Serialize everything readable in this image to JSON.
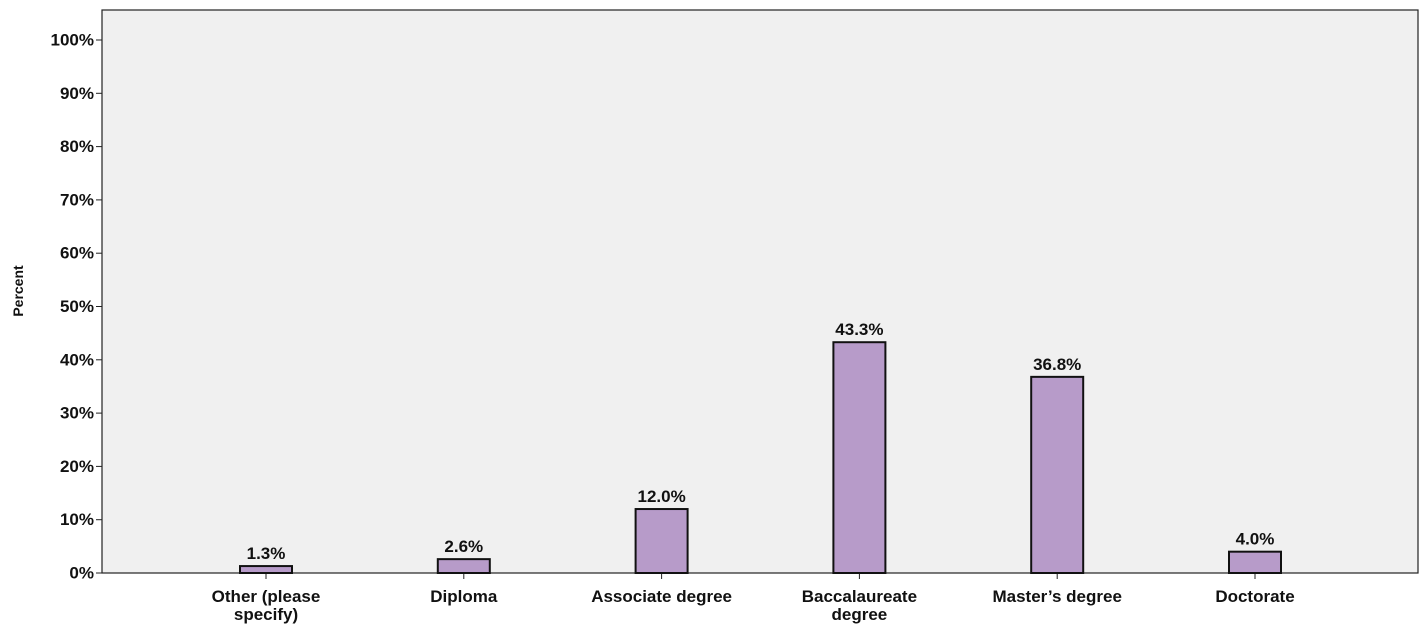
{
  "chart_data": {
    "type": "bar",
    "title": "",
    "xlabel": "",
    "ylabel": "Percent",
    "ylim": [
      0,
      100
    ],
    "y_ticks": [
      "0%",
      "10%",
      "20%",
      "30%",
      "40%",
      "50%",
      "60%",
      "70%",
      "80%",
      "90%",
      "100%"
    ],
    "categories": [
      [
        "Other (please",
        "specify)"
      ],
      [
        "Diploma"
      ],
      [
        "Associate degree"
      ],
      [
        "Baccalaureate",
        "degree"
      ],
      [
        "Master’s degree"
      ],
      [
        "Doctorate"
      ]
    ],
    "values": [
      1.3,
      2.6,
      12.0,
      43.3,
      36.8,
      4.0
    ],
    "data_labels": [
      "1.3%",
      "2.6%",
      "12.0%",
      "43.3%",
      "36.8%",
      "4.0%"
    ],
    "bar_color": "#b79bc9",
    "background_color": "#f0f0f0",
    "grid": false,
    "legend": "none"
  }
}
